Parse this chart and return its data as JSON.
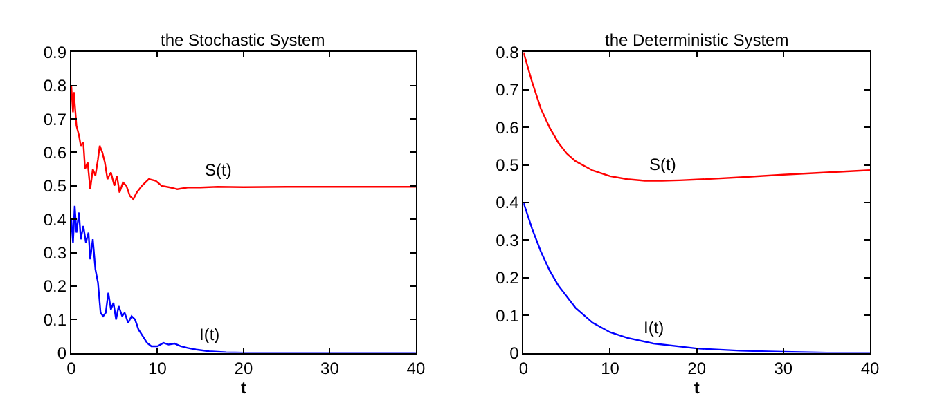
{
  "chart_data": [
    {
      "type": "line",
      "title": "the Stochastic System",
      "xlabel": "t",
      "xlim": [
        0,
        40
      ],
      "xticks": [
        0,
        10,
        20,
        30,
        40
      ],
      "ylim": [
        0,
        0.9
      ],
      "yticks": [
        0,
        0.1,
        0.2,
        0.3,
        0.4,
        0.5,
        0.6,
        0.7,
        0.8,
        0.9
      ],
      "legend": false,
      "series": [
        {
          "name": "S(t)",
          "color": "#ff0000",
          "x": [
            0,
            0.2,
            0.3,
            0.6,
            0.9,
            1.1,
            1.4,
            1.6,
            1.9,
            2.2,
            2.5,
            2.8,
            3.1,
            3.3,
            3.6,
            3.9,
            4.2,
            4.6,
            5,
            5.3,
            5.6,
            6.0,
            6.4,
            6.8,
            7.2,
            7.6,
            8.2,
            9,
            9.8,
            10.5,
            11.5,
            12.3,
            13.5,
            15,
            17,
            20,
            25,
            30,
            35,
            40
          ],
          "values": [
            0.8,
            0.72,
            0.78,
            0.68,
            0.65,
            0.62,
            0.63,
            0.55,
            0.57,
            0.49,
            0.55,
            0.53,
            0.58,
            0.62,
            0.6,
            0.57,
            0.52,
            0.54,
            0.5,
            0.53,
            0.48,
            0.51,
            0.5,
            0.47,
            0.46,
            0.48,
            0.5,
            0.52,
            0.515,
            0.5,
            0.495,
            0.49,
            0.495,
            0.495,
            0.497,
            0.496,
            0.497,
            0.497,
            0.497,
            0.497
          ]
        },
        {
          "name": "I(t)",
          "color": "#0000ff",
          "x": [
            0,
            0.2,
            0.4,
            0.6,
            0.9,
            1.1,
            1.4,
            1.7,
            2.0,
            2.2,
            2.5,
            2.8,
            3.1,
            3.4,
            3.7,
            4.0,
            4.3,
            4.6,
            4.9,
            5.2,
            5.5,
            5.9,
            6.2,
            6.6,
            7.0,
            7.4,
            7.8,
            8.3,
            8.8,
            9.3,
            10,
            10.7,
            11.3,
            12,
            12.7,
            13.5,
            14.5,
            16,
            18,
            20,
            25,
            30,
            40
          ],
          "values": [
            0.4,
            0.33,
            0.44,
            0.36,
            0.42,
            0.34,
            0.38,
            0.33,
            0.36,
            0.28,
            0.34,
            0.25,
            0.21,
            0.12,
            0.11,
            0.12,
            0.18,
            0.13,
            0.15,
            0.1,
            0.14,
            0.11,
            0.12,
            0.09,
            0.11,
            0.1,
            0.07,
            0.05,
            0.03,
            0.02,
            0.02,
            0.03,
            0.025,
            0.028,
            0.02,
            0.015,
            0.01,
            0.005,
            0.002,
            0.001,
            0,
            0,
            0
          ]
        }
      ]
    },
    {
      "type": "line",
      "title": "the Deterministic System",
      "xlabel": "t",
      "xlim": [
        0,
        40
      ],
      "xticks": [
        0,
        10,
        20,
        30,
        40
      ],
      "ylim": [
        0,
        0.8
      ],
      "yticks": [
        0,
        0.1,
        0.2,
        0.3,
        0.4,
        0.5,
        0.6,
        0.7,
        0.8
      ],
      "legend": false,
      "series": [
        {
          "name": "S(t)",
          "color": "#ff0000",
          "x": [
            0,
            1,
            2,
            3,
            4,
            5,
            6,
            8,
            10,
            12,
            14,
            16,
            18,
            20,
            25,
            30,
            35,
            40
          ],
          "values": [
            0.8,
            0.72,
            0.65,
            0.6,
            0.56,
            0.53,
            0.51,
            0.485,
            0.47,
            0.462,
            0.458,
            0.458,
            0.459,
            0.461,
            0.467,
            0.474,
            0.48,
            0.486
          ]
        },
        {
          "name": "I(t)",
          "color": "#0000ff",
          "x": [
            0,
            1,
            2,
            3,
            4,
            5,
            6,
            8,
            10,
            12,
            15,
            20,
            25,
            30,
            35,
            40
          ],
          "values": [
            0.4,
            0.33,
            0.27,
            0.22,
            0.18,
            0.15,
            0.12,
            0.08,
            0.055,
            0.04,
            0.025,
            0.012,
            0.006,
            0.003,
            0.001,
            0
          ]
        }
      ]
    }
  ]
}
